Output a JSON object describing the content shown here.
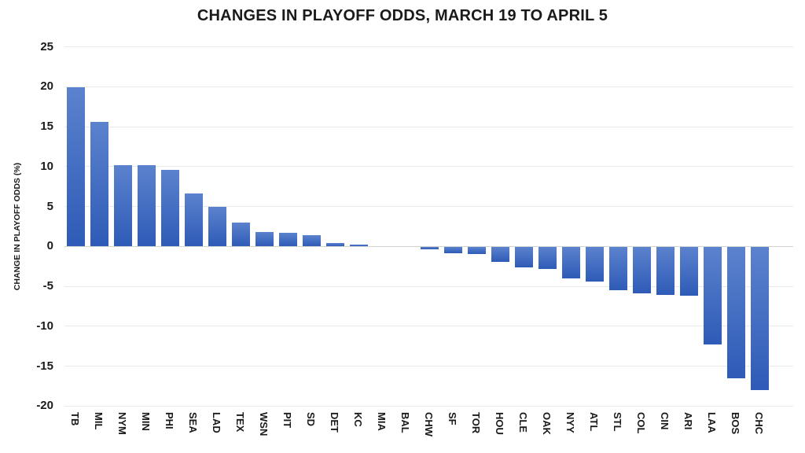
{
  "chart_data": {
    "type": "bar",
    "title": "CHANGES IN PLAYOFF ODDS, MARCH 19 TO APRIL 5",
    "xlabel": "",
    "ylabel": "CHANGE IN PLAYOFF ODDS (%)",
    "ylim": [
      -20,
      25
    ],
    "yticks": [
      25,
      20,
      15,
      10,
      5,
      0,
      -5,
      -10,
      -15,
      -20
    ],
    "grid": true,
    "legend": false,
    "bar_colors": {
      "gradient_top": "#5b82cd",
      "gradient_bottom": "#2e5bb7"
    },
    "categories": [
      "TB",
      "MIL",
      "NYM",
      "MIN",
      "PHI",
      "SEA",
      "LAD",
      "TEX",
      "WSN",
      "PIT",
      "SD",
      "DET",
      "KC",
      "MIA",
      "BAL",
      "CHW",
      "SF",
      "TOR",
      "HOU",
      "CLE",
      "OAK",
      "NYY",
      "ATL",
      "STL",
      "COL",
      "CIN",
      "ARI",
      "LAA",
      "BOS",
      "CHC"
    ],
    "values": [
      19.9,
      15.5,
      10.1,
      10.1,
      9.5,
      6.6,
      4.9,
      2.9,
      1.8,
      1.7,
      1.4,
      0.4,
      0.2,
      0.0,
      0.0,
      -0.3,
      -0.8,
      -0.9,
      -1.9,
      -2.6,
      -2.8,
      -4.0,
      -4.3,
      -5.4,
      -5.8,
      -6.0,
      -6.1,
      -12.2,
      -16.5,
      -17.9
    ]
  }
}
